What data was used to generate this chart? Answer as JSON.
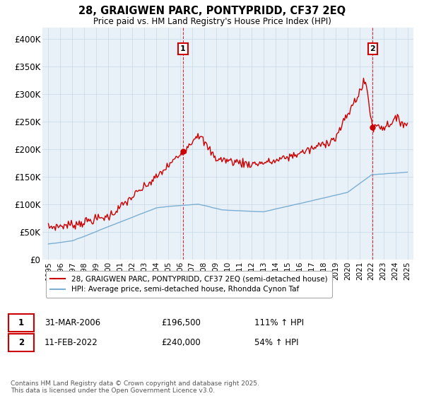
{
  "title": "28, GRAIGWEN PARC, PONTYPRIDD, CF37 2EQ",
  "subtitle": "Price paid vs. HM Land Registry's House Price Index (HPI)",
  "ylabel_ticks": [
    "£0",
    "£50K",
    "£100K",
    "£150K",
    "£200K",
    "£250K",
    "£300K",
    "£350K",
    "£400K"
  ],
  "ytick_values": [
    0,
    50000,
    100000,
    150000,
    200000,
    250000,
    300000,
    350000,
    400000
  ],
  "ylim": [
    0,
    420000
  ],
  "red_color": "#cc0000",
  "blue_color": "#7bafd4",
  "bg_chart": "#e8f0f8",
  "annotation1_date": "31-MAR-2006",
  "annotation1_price": "£196,500",
  "annotation1_hpi": "111% ↑ HPI",
  "annotation1_year": 2006.25,
  "annotation1_val": 196500,
  "annotation2_date": "11-FEB-2022",
  "annotation2_price": "£240,000",
  "annotation2_hpi": "54% ↑ HPI",
  "annotation2_year": 2022.1,
  "annotation2_val": 240000,
  "legend_line1": "28, GRAIGWEN PARC, PONTYPRIDD, CF37 2EQ (semi-detached house)",
  "legend_line2": "HPI: Average price, semi-detached house, Rhondda Cynon Taf",
  "footer": "Contains HM Land Registry data © Crown copyright and database right 2025.\nThis data is licensed under the Open Government Licence v3.0.",
  "background_color": "#ffffff",
  "grid_color": "#c8d8e8"
}
